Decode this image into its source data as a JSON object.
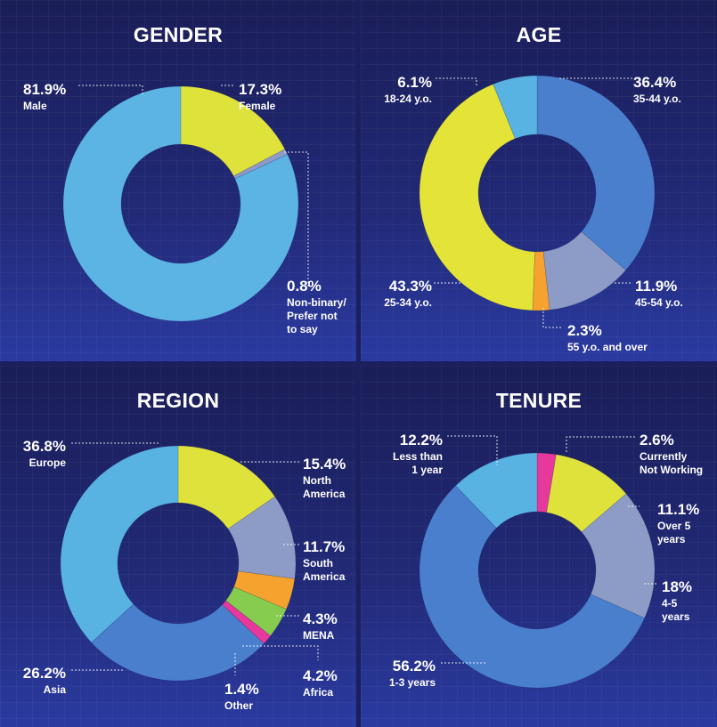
{
  "chart_data": [
    {
      "type": "pie",
      "title": "GENDER",
      "categories": [
        "Female",
        "Non-binary/\nPrefer not\nto say",
        "Male"
      ],
      "values": [
        17.3,
        0.8,
        81.9
      ],
      "value_labels": [
        "17.3%",
        "0.8%",
        "81.9%"
      ],
      "colors": [
        "#dfe23a",
        "#8e9bc9",
        "#5cb4e4"
      ]
    },
    {
      "type": "pie",
      "title": "AGE",
      "categories": [
        "35-44 y.o.",
        "45-54 y.o.",
        "55 y.o. and over",
        "25-34 y.o.",
        "18-24 y.o."
      ],
      "values": [
        36.4,
        11.9,
        2.3,
        43.3,
        6.1
      ],
      "value_labels": [
        "36.4%",
        "11.9%",
        "2.3%",
        "43.3%",
        "6.1%"
      ],
      "colors": [
        "#4a7fce",
        "#8c9cc6",
        "#f6a22e",
        "#e4e438",
        "#58b2e2"
      ]
    },
    {
      "type": "pie",
      "title": "REGION",
      "categories": [
        "North\nAmerica",
        "South\nAmerica",
        "MENA",
        "Africa",
        "Other",
        "Asia",
        "Europe"
      ],
      "values": [
        15.4,
        11.7,
        4.3,
        4.2,
        1.4,
        26.2,
        36.8
      ],
      "value_labels": [
        "15.4%",
        "11.7%",
        "4.3%",
        "4.2%",
        "1.4%",
        "26.2%",
        "36.8%"
      ],
      "colors": [
        "#dfe23a",
        "#8c9cc6",
        "#f6a22e",
        "#86cc4e",
        "#e7389c",
        "#4a7fce",
        "#58b2e2"
      ]
    },
    {
      "type": "pie",
      "title": "TENURE",
      "categories": [
        "Currently\nNot Working",
        "Over 5\nyears",
        "4-5\nyears",
        "1-3 years",
        "Less than\n1 year"
      ],
      "values": [
        2.6,
        11.1,
        18,
        56.2,
        12.2
      ],
      "value_labels": [
        "2.6%",
        "11.1%",
        "18%",
        "56.2%",
        "12.2%"
      ],
      "colors": [
        "#e7389c",
        "#dfe23a",
        "#8c9cc6",
        "#4a7fce",
        "#58b2e2"
      ]
    }
  ]
}
